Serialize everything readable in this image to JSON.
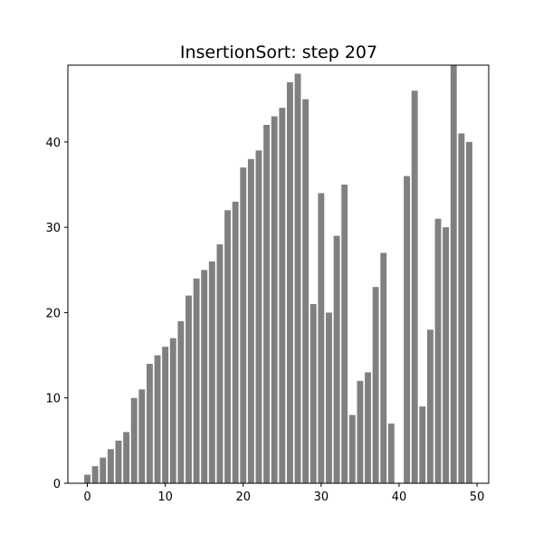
{
  "chart_data": {
    "type": "bar",
    "title": "InsertionSort: step 207",
    "xlabel": "",
    "ylabel": "",
    "x": [
      0,
      1,
      2,
      3,
      4,
      5,
      6,
      7,
      8,
      9,
      10,
      11,
      12,
      13,
      14,
      15,
      16,
      17,
      18,
      19,
      20,
      21,
      22,
      23,
      24,
      25,
      26,
      27,
      28,
      29,
      30,
      31,
      32,
      33,
      34,
      35,
      36,
      37,
      38,
      39,
      40,
      41,
      42,
      43,
      44,
      45,
      46,
      47,
      48,
      49
    ],
    "values": [
      1,
      2,
      3,
      4,
      5,
      6,
      10,
      11,
      14,
      15,
      16,
      17,
      19,
      22,
      24,
      25,
      26,
      28,
      32,
      33,
      37,
      38,
      39,
      42,
      43,
      44,
      47,
      48,
      45,
      21,
      34,
      20,
      29,
      35,
      8,
      12,
      13,
      23,
      27,
      7,
      0,
      36,
      46,
      9,
      18,
      31,
      30,
      49,
      41,
      40
    ],
    "xlim": [
      -2.5,
      51.5
    ],
    "ylim": [
      0,
      49
    ],
    "xticks": [
      0,
      10,
      20,
      30,
      40,
      50
    ],
    "yticks": [
      0,
      10,
      20,
      30,
      40
    ],
    "bar_color": "#808080",
    "grid": false,
    "legend": "none"
  }
}
